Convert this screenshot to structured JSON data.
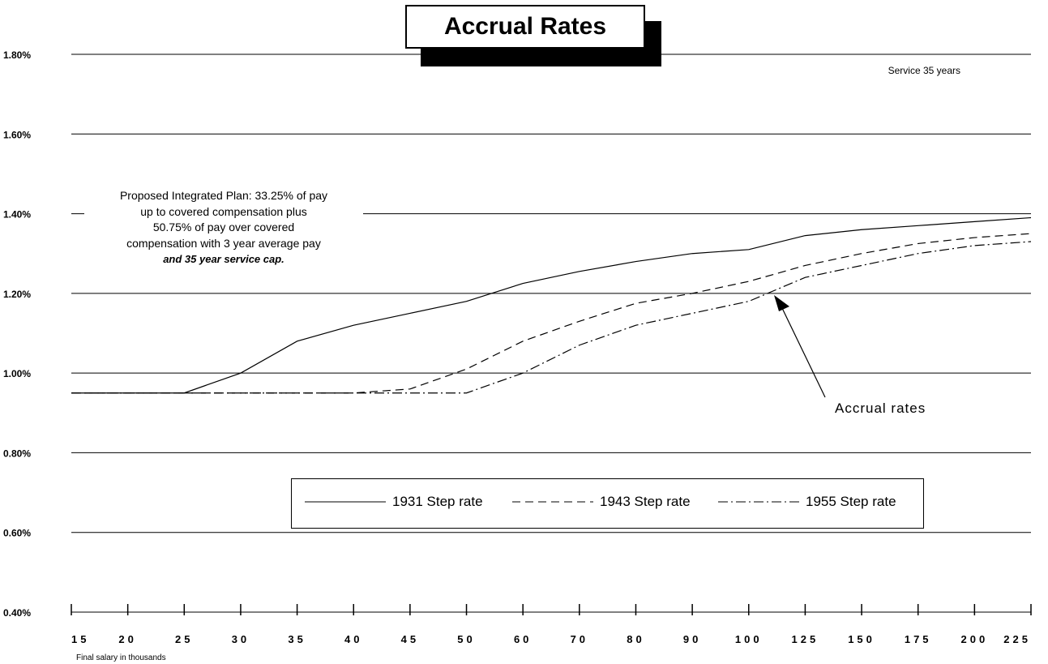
{
  "chart_data": {
    "type": "line",
    "title": "Accrual Rates",
    "note": "Service 35 years",
    "xlabel": "Final salary in thousands",
    "ylabel": "",
    "categories": [
      "15",
      "20",
      "25",
      "30",
      "35",
      "40",
      "45",
      "50",
      "60",
      "70",
      "80",
      "90",
      "100",
      "125",
      "150",
      "175",
      "200",
      "225"
    ],
    "ylim": [
      0.004,
      0.018
    ],
    "yticks": [
      "1.80%",
      "1.60%",
      "1.40%",
      "1.20%",
      "1.00%",
      "0.80%",
      "0.60%",
      "0.40%"
    ],
    "ytick_values": [
      0.018,
      0.016,
      0.014,
      0.012,
      0.01,
      0.008,
      0.006,
      0.004
    ],
    "grid": true,
    "legend_position": "bottom-center",
    "series": [
      {
        "name": "1931 Step rate",
        "style": "solid",
        "values": [
          0.0095,
          0.0095,
          0.0095,
          0.01,
          0.0108,
          0.0112,
          0.0115,
          0.0118,
          0.01225,
          0.01255,
          0.0128,
          0.013,
          0.0131,
          0.01345,
          0.0136,
          0.0137,
          0.0138,
          0.0139
        ]
      },
      {
        "name": "1943 Step rate",
        "style": "dashed",
        "values": [
          0.0095,
          0.0095,
          0.0095,
          0.0095,
          0.0095,
          0.0095,
          0.0096,
          0.0101,
          0.0108,
          0.0113,
          0.01175,
          0.012,
          0.0123,
          0.0127,
          0.013,
          0.01325,
          0.0134,
          0.0135
        ]
      },
      {
        "name": "1955 Step rate",
        "style": "dashdot",
        "values": [
          0.0095,
          0.0095,
          0.0095,
          0.0095,
          0.0095,
          0.0095,
          0.0095,
          0.0095,
          0.01,
          0.0107,
          0.0112,
          0.0115,
          0.0118,
          0.0124,
          0.0127,
          0.013,
          0.0132,
          0.0133
        ]
      }
    ],
    "annotations": {
      "plan_text": [
        "Proposed Integrated Plan: 33.25% of pay",
        "up to covered compensation plus",
        "50.75% of pay over covered",
        "compensation with 3 year average pay",
        "and 35 year service cap."
      ],
      "arrow_label": "Accrual rates"
    }
  }
}
